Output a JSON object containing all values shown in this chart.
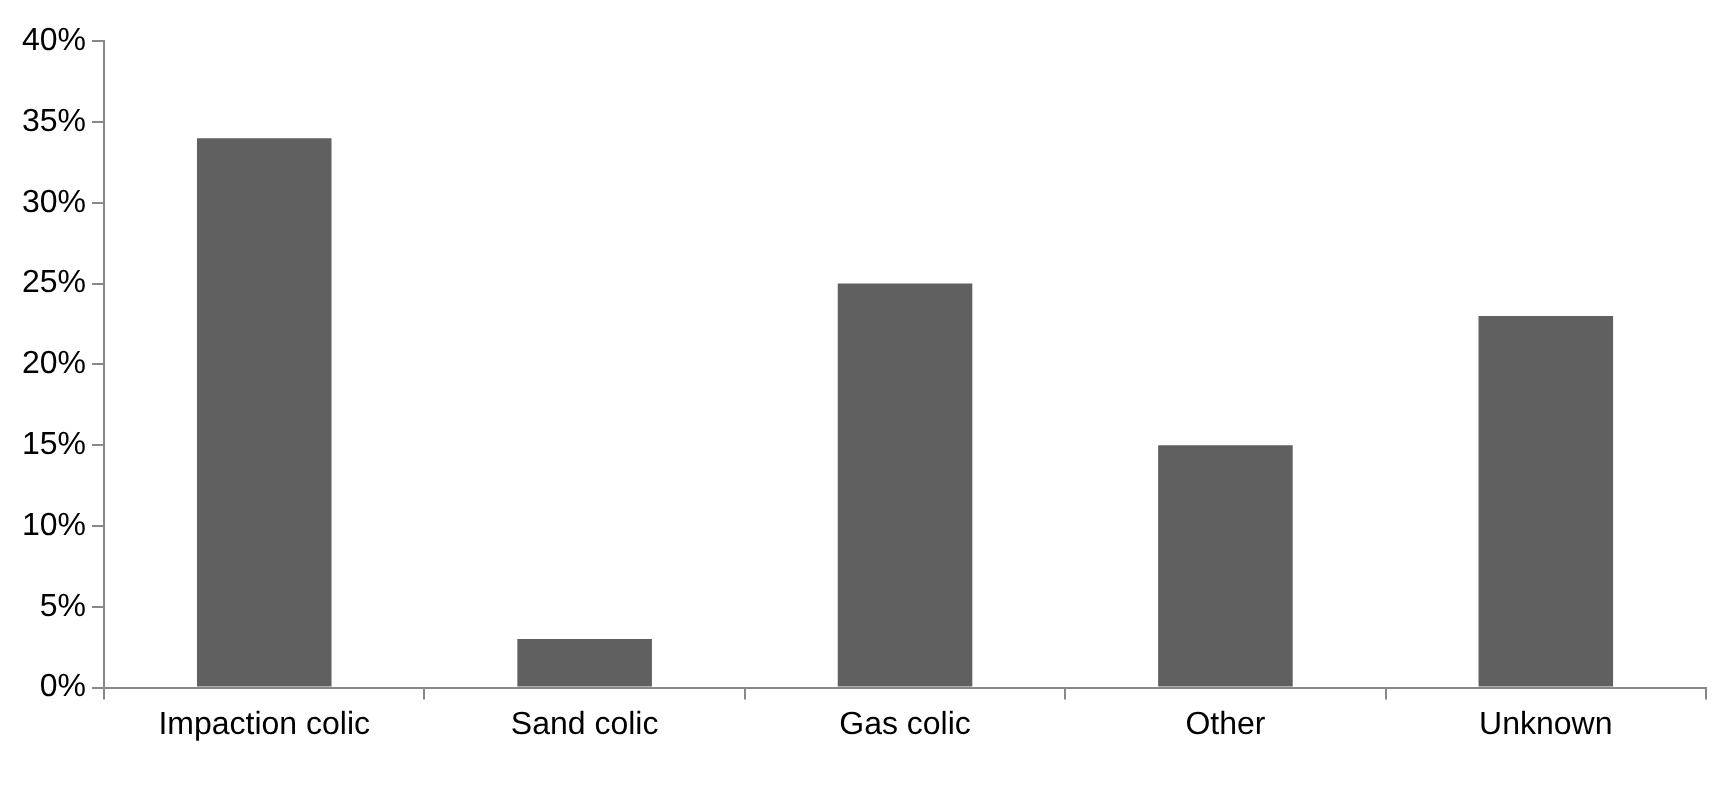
{
  "chart_data": {
    "type": "bar",
    "categories": [
      "Impaction colic",
      "Sand colic",
      "Gas colic",
      "Other",
      "Unknown"
    ],
    "values": [
      34,
      3,
      25,
      15,
      23
    ],
    "color": "#606060",
    "ylim": [
      0,
      40
    ],
    "yticks": [
      {
        "value": 0,
        "label": "0%"
      },
      {
        "value": 5,
        "label": "5%"
      },
      {
        "value": 10,
        "label": "10%"
      },
      {
        "value": 15,
        "label": "15%"
      },
      {
        "value": 20,
        "label": "20%"
      },
      {
        "value": 25,
        "label": "25%"
      },
      {
        "value": 30,
        "label": "30%"
      },
      {
        "value": 35,
        "label": "35%"
      },
      {
        "value": 40,
        "label": "40%"
      }
    ]
  }
}
